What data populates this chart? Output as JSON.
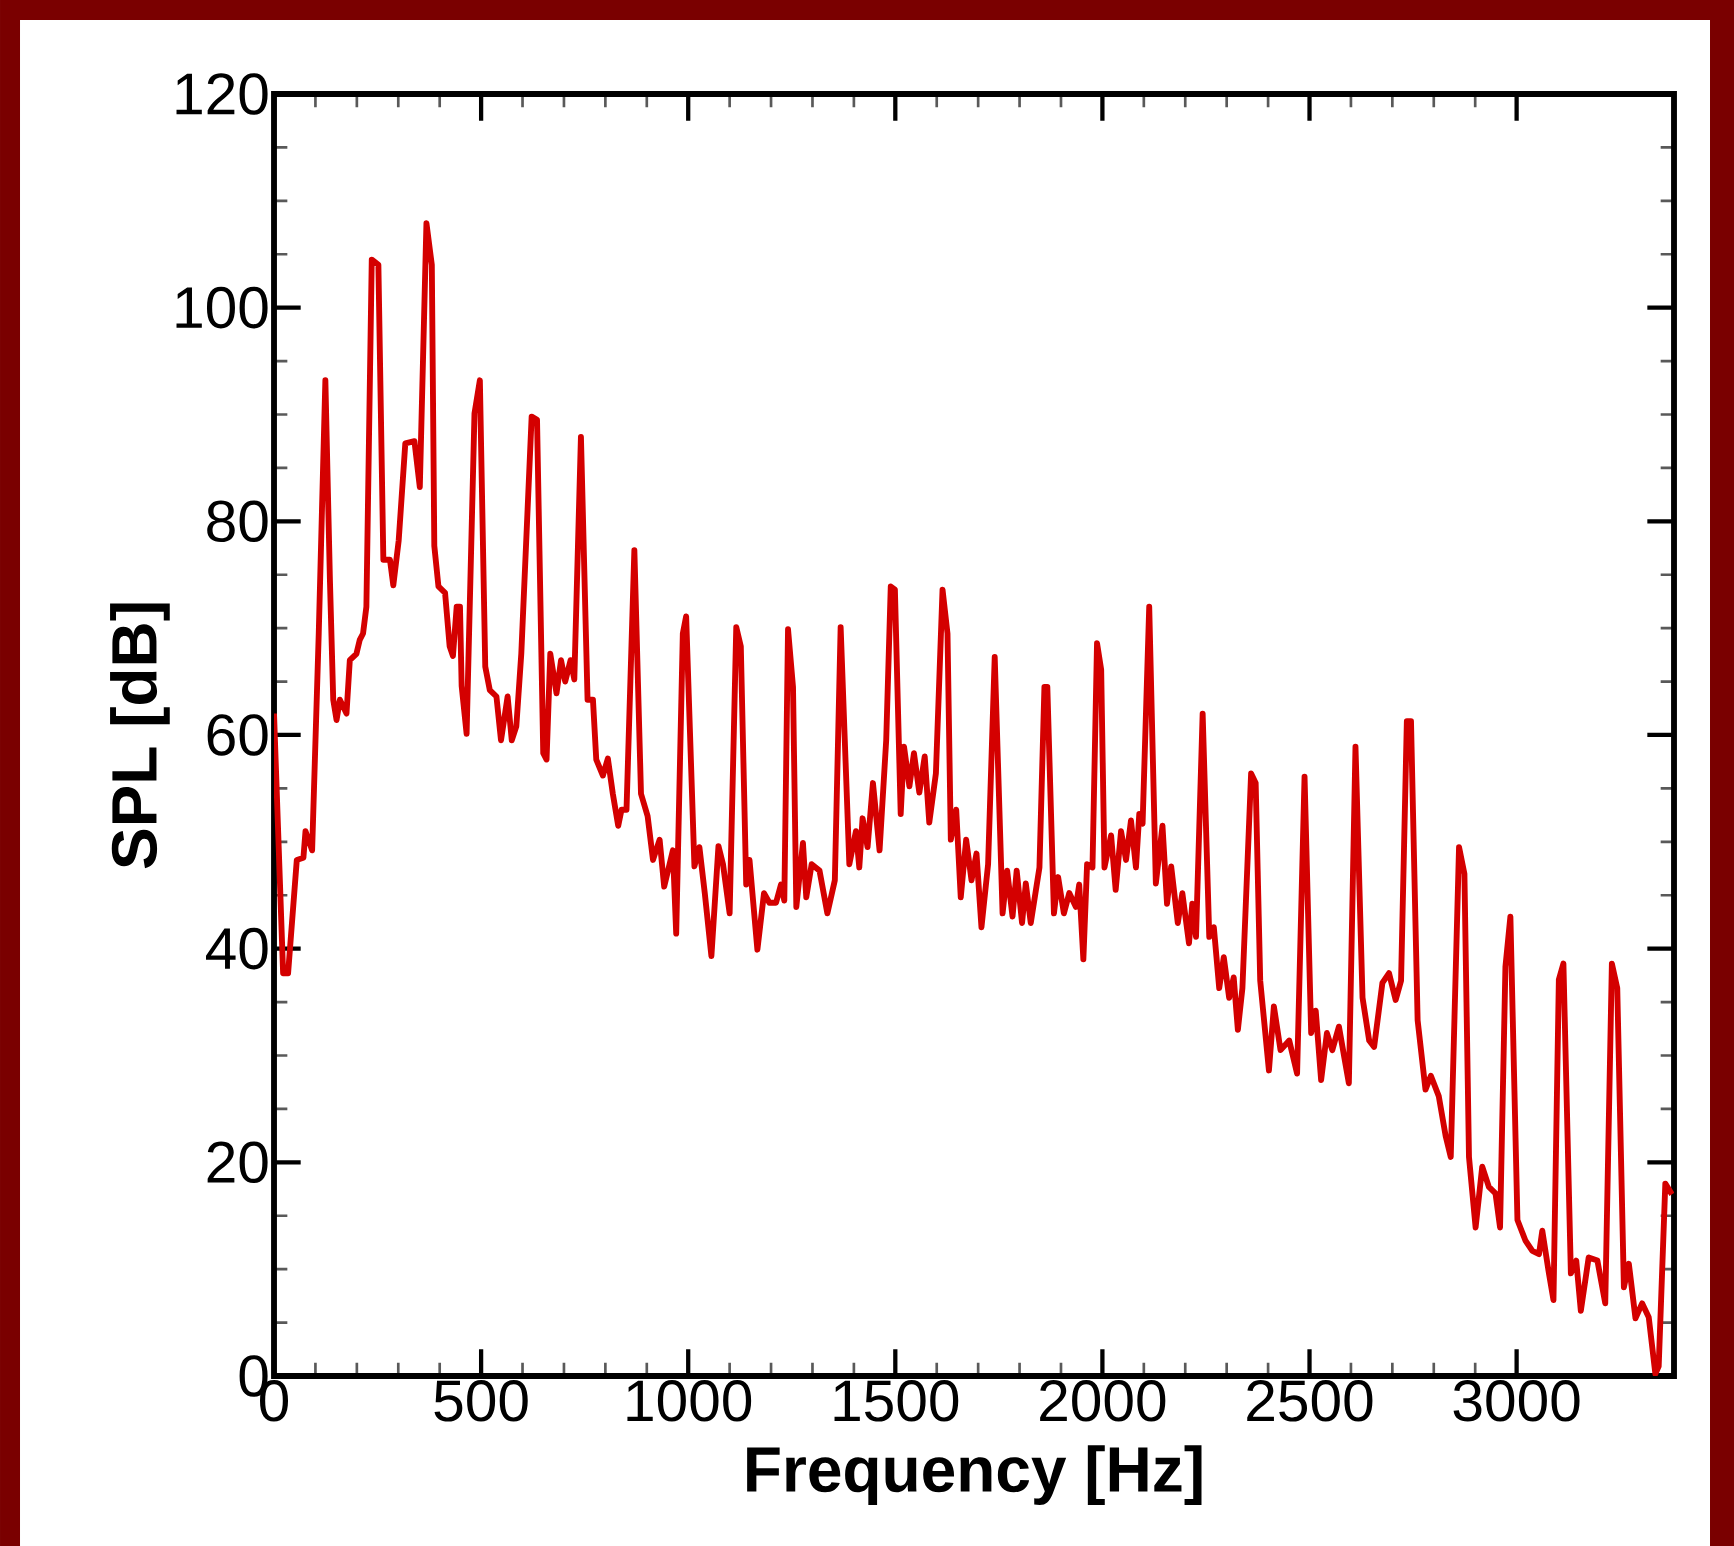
{
  "chart_data": {
    "type": "line",
    "xlabel": "Frequency [Hz]",
    "ylabel": "SPL [dB]",
    "xlim": [
      0,
      3380
    ],
    "ylim": [
      0,
      120
    ],
    "xticks": [
      0,
      500,
      1000,
      1500,
      2000,
      2500,
      3000
    ],
    "yticks": [
      0,
      20,
      40,
      60,
      80,
      100,
      120
    ],
    "grid": false,
    "line_style": "solid",
    "marker": "none",
    "series": [
      {
        "color": "#d40000",
        "x": [
          0,
          22,
          34,
          55,
          71,
          76,
          92,
          108,
          124,
          135,
          143,
          151,
          159,
          175,
          183,
          199,
          207,
          215,
          223,
          236,
          252,
          264,
          280,
          288,
          301,
          317,
          339,
          352,
          368,
          381,
          387,
          397,
          413,
          424,
          432,
          441,
          449,
          453,
          465,
          484,
          497,
          510,
          521,
          537,
          548,
          564,
          574,
          585,
          597,
          622,
          635,
          650,
          658,
          667,
          682,
          693,
          703,
          716,
          725,
          741,
          757,
          770,
          778,
          794,
          806,
          818,
          831,
          839,
          851,
          870,
          886,
          902,
          915,
          931,
          942,
          963,
          971,
          987,
          995,
          1015,
          1027,
          1040,
          1056,
          1073,
          1084,
          1100,
          1116,
          1127,
          1140,
          1148,
          1167,
          1183,
          1196,
          1212,
          1224,
          1232,
          1241,
          1253,
          1261,
          1277,
          1285,
          1298,
          1317,
          1336,
          1354,
          1368,
          1389,
          1405,
          1413,
          1421,
          1433,
          1446,
          1462,
          1478,
          1489,
          1499,
          1513,
          1521,
          1534,
          1545,
          1558,
          1571,
          1582,
          1598,
          1614,
          1626,
          1634,
          1647,
          1658,
          1671,
          1684,
          1696,
          1708,
          1724,
          1740,
          1759,
          1770,
          1783,
          1793,
          1806,
          1815,
          1827,
          1848,
          1860,
          1867,
          1883,
          1893,
          1907,
          1920,
          1936,
          1944,
          1954,
          1963,
          1976,
          1987,
          1997,
          2005,
          2021,
          2032,
          2045,
          2057,
          2069,
          2081,
          2089,
          2097,
          2113,
          2129,
          2145,
          2156,
          2166,
          2182,
          2193,
          2209,
          2217,
          2226,
          2242,
          2258,
          2269,
          2282,
          2293,
          2306,
          2317,
          2327,
          2338,
          2359,
          2370,
          2381,
          2402,
          2414,
          2430,
          2451,
          2470,
          2488,
          2504,
          2515,
          2528,
          2542,
          2555,
          2571,
          2595,
          2611,
          2628,
          2644,
          2656,
          2676,
          2692,
          2708,
          2721,
          2735,
          2745,
          2761,
          2780,
          2793,
          2812,
          2829,
          2841,
          2861,
          2874,
          2885,
          2901,
          2917,
          2933,
          2949,
          2960,
          2973,
          2985,
          3002,
          3021,
          3038,
          3054,
          3062,
          3078,
          3089,
          3102,
          3113,
          3131,
          3144,
          3155,
          3174,
          3195,
          3214,
          3230,
          3243,
          3259,
          3271,
          3287,
          3303,
          3319,
          3335,
          3343,
          3359,
          3375
        ],
        "values": [
          62,
          37.7,
          37.7,
          48.3,
          48.5,
          51,
          49.2,
          69.5,
          93.2,
          74.5,
          63.3,
          61.4,
          63.3,
          62,
          67,
          67.6,
          68.9,
          69.5,
          72,
          104.5,
          104,
          76.4,
          76.4,
          74,
          78.2,
          87.3,
          87.5,
          83.2,
          107.9,
          104,
          77.7,
          73.9,
          73.3,
          68.3,
          67.4,
          72,
          72,
          64.6,
          60.1,
          90.1,
          93.2,
          66.4,
          64.2,
          63.6,
          59.5,
          63.6,
          59.5,
          60.8,
          67.6,
          89.8,
          89.5,
          58.3,
          57.7,
          67.6,
          63.9,
          67,
          65,
          67,
          65.2,
          87.9,
          63.3,
          63.3,
          57.7,
          56.2,
          57.8,
          54.5,
          51.5,
          53,
          53,
          77.3,
          54.5,
          52.4,
          48.3,
          50.2,
          45.8,
          49.2,
          41.4,
          69.5,
          71.1,
          47.7,
          49.5,
          45.2,
          39.3,
          49.6,
          47.9,
          43.3,
          70.1,
          68.3,
          46,
          48.3,
          39.9,
          45.2,
          44.3,
          44.3,
          46,
          44.5,
          69.9,
          64.5,
          43.9,
          49.9,
          44.8,
          47.9,
          47.3,
          43.3,
          46.4,
          70.1,
          47.9,
          51,
          47.6,
          52.2,
          49.5,
          55.5,
          49.2,
          59.5,
          73.9,
          73.6,
          52.6,
          58.9,
          55.2,
          58.3,
          54.6,
          58,
          51.8,
          56.4,
          73.6,
          69.5,
          50.2,
          53,
          44.8,
          50.2,
          46.4,
          48.9,
          42,
          47.9,
          67.3,
          43.3,
          47.3,
          43,
          47.3,
          42.4,
          46.1,
          42.4,
          47.6,
          64.5,
          64.5,
          43.3,
          46.7,
          43.3,
          45.2,
          43.9,
          46,
          39,
          47.9,
          47.6,
          68.6,
          66.1,
          47.6,
          50.6,
          45.5,
          51,
          48.3,
          52,
          47.6,
          52.6,
          51.7,
          72,
          46.1,
          51.5,
          44.2,
          47.7,
          42.4,
          45.2,
          40.5,
          44.2,
          41.1,
          62,
          41.1,
          42,
          36.3,
          39.2,
          35.4,
          37.3,
          32.4,
          36.3,
          56.4,
          55.5,
          37,
          28.6,
          34.6,
          30.5,
          31.4,
          28.3,
          56.1,
          32.1,
          34.2,
          27.7,
          32.1,
          30.5,
          32.7,
          27.4,
          58.9,
          35.4,
          31.4,
          30.8,
          36.8,
          37.7,
          35.2,
          37,
          61.3,
          61.3,
          33.3,
          26.8,
          28.1,
          26.2,
          22.4,
          20.5,
          49.5,
          47,
          20.5,
          13.9,
          19.6,
          17.7,
          17.1,
          13.9,
          38.3,
          43,
          14.6,
          12.7,
          11.7,
          11.4,
          13.6,
          9.6,
          7.1,
          37.1,
          38.6,
          9.6,
          10.8,
          6.1,
          11.1,
          10.8,
          6.8,
          38.6,
          36.3,
          8.3,
          10.5,
          5.4,
          6.8,
          5.5,
          0.2,
          0.9,
          18,
          17
        ]
      }
    ]
  }
}
